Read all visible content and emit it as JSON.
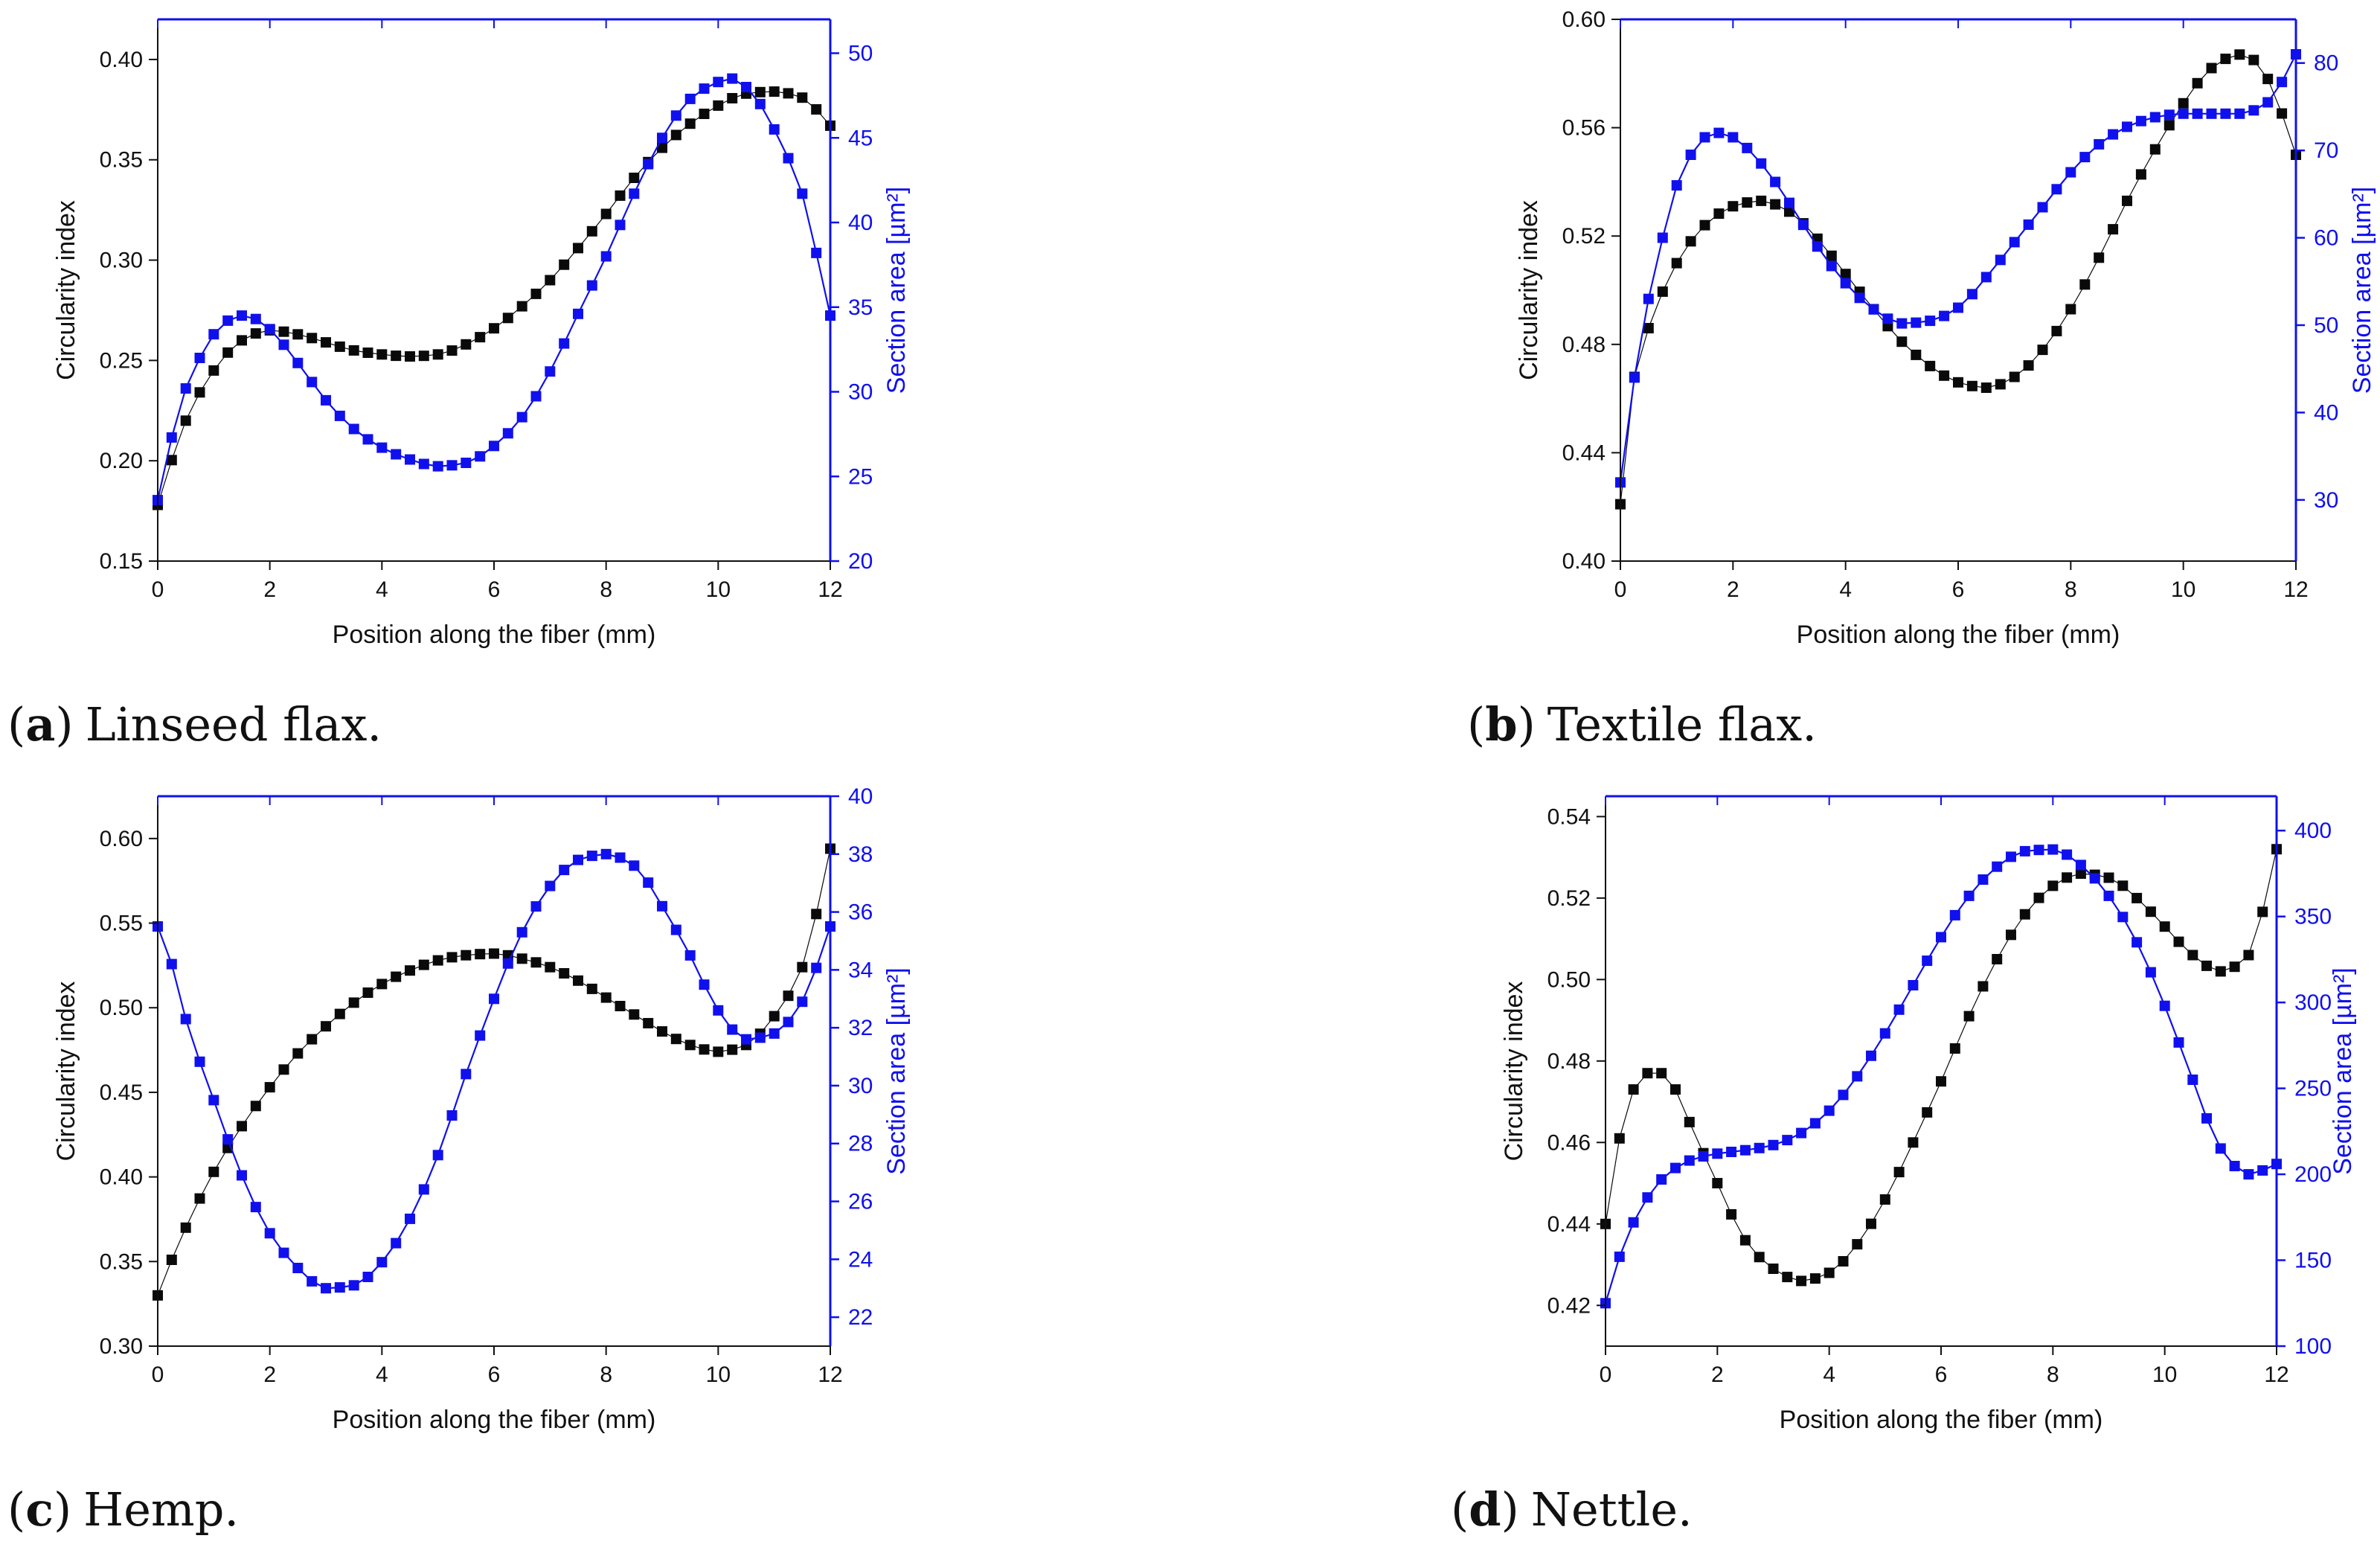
{
  "colors": {
    "circularity": "#0a0a0a",
    "area": "#1010ee",
    "axis": "#111111",
    "right_axis": "#1010ee"
  },
  "chart_data": [
    {
      "id": "a",
      "type": "line",
      "caption": {
        "letter": "a",
        "open": "(",
        "close": ")",
        "text": "Linseed flax."
      },
      "xlabel": "Position along the fiber (mm)",
      "ylabel": "Circularity index",
      "y2label": "Section area [µm²]",
      "xlim": [
        0,
        12
      ],
      "xticks": [
        0,
        2,
        4,
        6,
        8,
        10,
        12
      ],
      "ylim": [
        0.15,
        0.42
      ],
      "yticks": [
        0.15,
        0.2,
        0.25,
        0.3,
        0.35,
        0.4
      ],
      "ydec": 2,
      "y2lim": [
        20,
        52
      ],
      "y2ticks": [
        20,
        25,
        30,
        35,
        40,
        45,
        50
      ],
      "y2dec": 0,
      "series": [
        {
          "name": "Circularity index",
          "axis": "left",
          "color": "#0a0a0a",
          "knots": [
            [
              0,
              0.178
            ],
            [
              0.5,
              0.22
            ],
            [
              1,
              0.245
            ],
            [
              1.5,
              0.26
            ],
            [
              2,
              0.265
            ],
            [
              2.5,
              0.263
            ],
            [
              3,
              0.259
            ],
            [
              3.5,
              0.255
            ],
            [
              4,
              0.253
            ],
            [
              4.5,
              0.252
            ],
            [
              5,
              0.253
            ],
            [
              5.5,
              0.258
            ],
            [
              6,
              0.266
            ],
            [
              6.5,
              0.277
            ],
            [
              7,
              0.29
            ],
            [
              7.5,
              0.306
            ],
            [
              8,
              0.323
            ],
            [
              8.5,
              0.341
            ],
            [
              9,
              0.356
            ],
            [
              9.5,
              0.368
            ],
            [
              10,
              0.377
            ],
            [
              10.5,
              0.383
            ],
            [
              11,
              0.384
            ],
            [
              11.5,
              0.381
            ],
            [
              12,
              0.367
            ]
          ]
        },
        {
          "name": "Section area",
          "axis": "right",
          "color": "#1010ee",
          "knots": [
            [
              0,
              23.6
            ],
            [
              0.25,
              27.3
            ],
            [
              0.5,
              30.2
            ],
            [
              0.75,
              32
            ],
            [
              1,
              33.4
            ],
            [
              1.25,
              34.2
            ],
            [
              1.5,
              34.5
            ],
            [
              1.75,
              34.3
            ],
            [
              2,
              33.7
            ],
            [
              2.5,
              31.7
            ],
            [
              3,
              29.5
            ],
            [
              3.5,
              27.8
            ],
            [
              4,
              26.7
            ],
            [
              4.5,
              26
            ],
            [
              5,
              25.6
            ],
            [
              5.5,
              25.8
            ],
            [
              6,
              26.8
            ],
            [
              6.5,
              28.5
            ],
            [
              7,
              31.2
            ],
            [
              7.5,
              34.6
            ],
            [
              8,
              38
            ],
            [
              8.5,
              41.7
            ],
            [
              9,
              45
            ],
            [
              9.5,
              47.3
            ],
            [
              10,
              48.3
            ],
            [
              10.25,
              48.5
            ],
            [
              10.5,
              48
            ],
            [
              10.75,
              47
            ],
            [
              11,
              45.5
            ],
            [
              11.25,
              43.8
            ],
            [
              11.5,
              41.7
            ],
            [
              11.75,
              38.2
            ],
            [
              12,
              34.5
            ]
          ]
        }
      ]
    },
    {
      "id": "b",
      "type": "line",
      "caption": {
        "letter": "b",
        "open": "(",
        "close": ")",
        "text": "Textile flax."
      },
      "xlabel": "Position along the fiber (mm)",
      "ylabel": "Circularity index",
      "y2label": "Section area [µm²]",
      "xlim": [
        0,
        12
      ],
      "xticks": [
        0,
        2,
        4,
        6,
        8,
        10,
        12
      ],
      "ylim": [
        0.4,
        0.6
      ],
      "yticks": [
        0.4,
        0.44,
        0.48,
        0.52,
        0.56,
        0.6
      ],
      "ydec": 2,
      "y2lim": [
        23,
        85
      ],
      "y2ticks": [
        30,
        40,
        50,
        60,
        70,
        80
      ],
      "y2dec": 0,
      "series": [
        {
          "name": "Circularity index",
          "axis": "left",
          "color": "#0a0a0a",
          "knots": [
            [
              0,
              0.421
            ],
            [
              0.25,
              0.468
            ],
            [
              0.5,
              0.486
            ],
            [
              1,
              0.51
            ],
            [
              1.5,
              0.524
            ],
            [
              2,
              0.531
            ],
            [
              2.5,
              0.533
            ],
            [
              3,
              0.529
            ],
            [
              3.5,
              0.519
            ],
            [
              4,
              0.506
            ],
            [
              4.5,
              0.493
            ],
            [
              5,
              0.481
            ],
            [
              5.5,
              0.472
            ],
            [
              6,
              0.466
            ],
            [
              6.5,
              0.464
            ],
            [
              7,
              0.468
            ],
            [
              7.5,
              0.478
            ],
            [
              8,
              0.493
            ],
            [
              8.5,
              0.512
            ],
            [
              9,
              0.533
            ],
            [
              9.5,
              0.552
            ],
            [
              10,
              0.569
            ],
            [
              10.5,
              0.582
            ],
            [
              11,
              0.587
            ],
            [
              11.25,
              0.585
            ],
            [
              11.5,
              0.578
            ],
            [
              12,
              0.55
            ]
          ]
        },
        {
          "name": "Section area",
          "axis": "right",
          "color": "#1010ee",
          "knots": [
            [
              0,
              32
            ],
            [
              0.25,
              44
            ],
            [
              0.5,
              53
            ],
            [
              0.75,
              60
            ],
            [
              1,
              66
            ],
            [
              1.25,
              69.5
            ],
            [
              1.5,
              71.5
            ],
            [
              1.75,
              72
            ],
            [
              2,
              71.5
            ],
            [
              2.5,
              68.5
            ],
            [
              3,
              64
            ],
            [
              3.5,
              59
            ],
            [
              4,
              54.8
            ],
            [
              4.5,
              51.8
            ],
            [
              5,
              50.2
            ],
            [
              5.5,
              50.5
            ],
            [
              6,
              52
            ],
            [
              6.5,
              55.5
            ],
            [
              7,
              59.5
            ],
            [
              7.5,
              63.5
            ],
            [
              8,
              67.5
            ],
            [
              8.5,
              70.7
            ],
            [
              9,
              72.7
            ],
            [
              9.5,
              73.8
            ],
            [
              10,
              74.2
            ],
            [
              10.5,
              74.2
            ],
            [
              11,
              74.2
            ],
            [
              11.5,
              75.5
            ],
            [
              12,
              81
            ]
          ]
        }
      ]
    },
    {
      "id": "c",
      "type": "line",
      "caption": {
        "letter": "c",
        "open": "(",
        "close": ")",
        "text": "Hemp."
      },
      "xlabel": "Position along the fiber (mm)",
      "ylabel": "Circularity index",
      "y2label": "Section area [µm²]",
      "xlim": [
        0,
        12
      ],
      "xticks": [
        0,
        2,
        4,
        6,
        8,
        10,
        12
      ],
      "ylim": [
        0.3,
        0.625
      ],
      "yticks": [
        0.3,
        0.35,
        0.4,
        0.45,
        0.5,
        0.55,
        0.6
      ],
      "ydec": 2,
      "y2lim": [
        21,
        40
      ],
      "y2ticks": [
        22,
        24,
        26,
        28,
        30,
        32,
        34,
        36,
        38,
        40
      ],
      "y2dec": 0,
      "series": [
        {
          "name": "Circularity index",
          "axis": "left",
          "color": "#0a0a0a",
          "knots": [
            [
              0,
              0.33
            ],
            [
              0.25,
              0.351
            ],
            [
              0.5,
              0.37
            ],
            [
              1,
              0.403
            ],
            [
              1.5,
              0.43
            ],
            [
              2,
              0.453
            ],
            [
              2.5,
              0.473
            ],
            [
              3,
              0.489
            ],
            [
              3.5,
              0.503
            ],
            [
              4,
              0.514
            ],
            [
              4.5,
              0.522
            ],
            [
              5,
              0.528
            ],
            [
              5.5,
              0.531
            ],
            [
              6,
              0.532
            ],
            [
              6.5,
              0.529
            ],
            [
              7,
              0.524
            ],
            [
              7.5,
              0.516
            ],
            [
              8,
              0.506
            ],
            [
              8.5,
              0.496
            ],
            [
              9,
              0.486
            ],
            [
              9.5,
              0.478
            ],
            [
              10,
              0.474
            ],
            [
              10.5,
              0.478
            ],
            [
              11,
              0.495
            ],
            [
              11.5,
              0.524
            ],
            [
              12,
              0.594
            ]
          ]
        },
        {
          "name": "Section area",
          "axis": "right",
          "color": "#1010ee",
          "knots": [
            [
              0,
              35.5
            ],
            [
              0.25,
              34.2
            ],
            [
              0.5,
              32.3
            ],
            [
              1,
              29.5
            ],
            [
              1.5,
              26.9
            ],
            [
              2,
              24.9
            ],
            [
              2.5,
              23.7
            ],
            [
              3,
              23
            ],
            [
              3.5,
              23.1
            ],
            [
              4,
              23.9
            ],
            [
              4.5,
              25.4
            ],
            [
              5,
              27.6
            ],
            [
              5.5,
              30.4
            ],
            [
              6,
              33
            ],
            [
              6.5,
              35.3
            ],
            [
              7,
              36.9
            ],
            [
              7.5,
              37.8
            ],
            [
              8,
              38
            ],
            [
              8.5,
              37.6
            ],
            [
              9,
              36.2
            ],
            [
              9.5,
              34.5
            ],
            [
              10,
              32.6
            ],
            [
              10.5,
              31.6
            ],
            [
              11,
              31.8
            ],
            [
              11.5,
              32.9
            ],
            [
              12,
              35.5
            ]
          ]
        }
      ]
    },
    {
      "id": "d",
      "type": "line",
      "caption": {
        "letter": "d",
        "open": "(",
        "close": ")",
        "text": "Nettle."
      },
      "xlabel": "Position along the fiber (mm)",
      "ylabel": "Circularity index",
      "y2label": "Section area [µm²]",
      "xlim": [
        0,
        12
      ],
      "xticks": [
        0,
        2,
        4,
        6,
        8,
        10,
        12
      ],
      "ylim": [
        0.41,
        0.545
      ],
      "yticks": [
        0.42,
        0.44,
        0.46,
        0.48,
        0.5,
        0.52,
        0.54
      ],
      "ydec": 2,
      "y2lim": [
        100,
        420
      ],
      "y2ticks": [
        100,
        150,
        200,
        250,
        300,
        350,
        400
      ],
      "y2dec": 0,
      "series": [
        {
          "name": "Circularity index",
          "axis": "left",
          "color": "#0a0a0a",
          "knots": [
            [
              0,
              0.44
            ],
            [
              0.25,
              0.461
            ],
            [
              0.5,
              0.473
            ],
            [
              0.75,
              0.477
            ],
            [
              1,
              0.477
            ],
            [
              1.25,
              0.473
            ],
            [
              1.5,
              0.465
            ],
            [
              2,
              0.45
            ],
            [
              2.5,
              0.436
            ],
            [
              3,
              0.429
            ],
            [
              3.5,
              0.426
            ],
            [
              4,
              0.428
            ],
            [
              4.5,
              0.435
            ],
            [
              5,
              0.446
            ],
            [
              5.5,
              0.46
            ],
            [
              6,
              0.475
            ],
            [
              6.5,
              0.491
            ],
            [
              7,
              0.505
            ],
            [
              7.5,
              0.516
            ],
            [
              8,
              0.523
            ],
            [
              8.5,
              0.526
            ],
            [
              9,
              0.525
            ],
            [
              9.5,
              0.52
            ],
            [
              10,
              0.513
            ],
            [
              10.5,
              0.506
            ],
            [
              11,
              0.502
            ],
            [
              11.5,
              0.506
            ],
            [
              12,
              0.532
            ]
          ]
        },
        {
          "name": "Section area",
          "axis": "right",
          "color": "#1010ee",
          "knots": [
            [
              0,
              125
            ],
            [
              0.25,
              152
            ],
            [
              0.5,
              172
            ],
            [
              1,
              197
            ],
            [
              1.5,
              208
            ],
            [
              2,
              212
            ],
            [
              2.5,
              214
            ],
            [
              3,
              217
            ],
            [
              3.5,
              224
            ],
            [
              4,
              237
            ],
            [
              4.5,
              257
            ],
            [
              5,
              282
            ],
            [
              5.5,
              310
            ],
            [
              6,
              338
            ],
            [
              6.5,
              362
            ],
            [
              7,
              379
            ],
            [
              7.5,
              388
            ],
            [
              8,
              389
            ],
            [
              8.5,
              380
            ],
            [
              9,
              362
            ],
            [
              9.5,
              335
            ],
            [
              10,
              298
            ],
            [
              10.5,
              255
            ],
            [
              11,
              215
            ],
            [
              11.5,
              200
            ],
            [
              12,
              206
            ]
          ]
        }
      ]
    }
  ]
}
